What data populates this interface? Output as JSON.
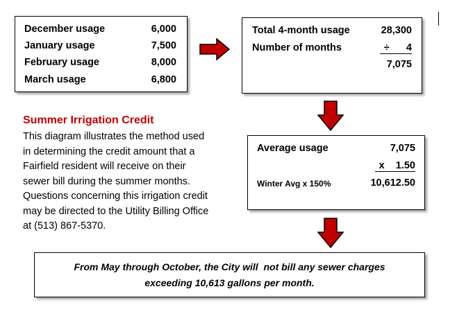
{
  "usage_box": {
    "rows": [
      {
        "label": "December usage",
        "value": "6,000"
      },
      {
        "label": "January usage",
        "value": "7,500"
      },
      {
        "label": "February usage",
        "value": "8,000"
      },
      {
        "label": "March usage",
        "value": "6,800"
      }
    ]
  },
  "total_box": {
    "total_label": "Total 4-month usage",
    "total_value": "28,300",
    "months_label": "Number of months",
    "months_value": "÷      4",
    "result": "7,075"
  },
  "average_box": {
    "avg_label": "Average usage",
    "avg_value": "7,075",
    "multiplier": "x    1.50",
    "winter_label": "Winter Avg x 150%",
    "winter_value": "10,612.50"
  },
  "credit": {
    "title": "Summer Irrigation Credit",
    "lines": [
      "This diagram illustrates the method used",
      "in determining the credit amount that a",
      "Fairfield resident will receive on their",
      "sewer bill during the summer months.",
      "Questions concerning this irrigation credit",
      "may be directed to the Utility Billing Office",
      "at (513) 867-5370."
    ]
  },
  "bottom": {
    "line1": "From May through October, the City will  not bill any sewer charges",
    "line2": "exceeding 10,613 gallons per month."
  },
  "colors": {
    "arrow_fill": "#c00000",
    "title": "#c00000"
  }
}
